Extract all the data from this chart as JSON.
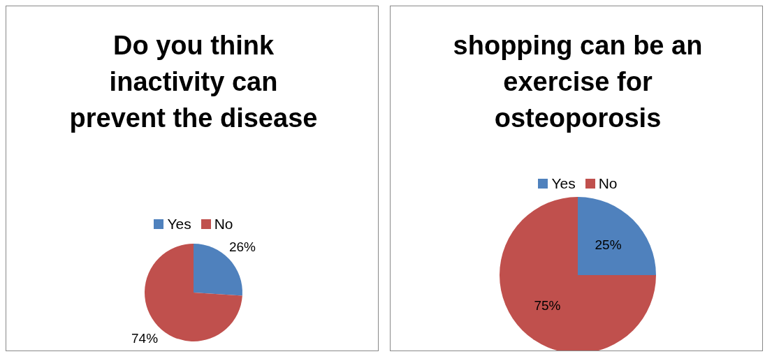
{
  "chart_data": [
    {
      "type": "pie",
      "title": "Do you think inactivity can prevent the disease",
      "categories": [
        "Yes",
        "No"
      ],
      "values": [
        26,
        74
      ],
      "colors": [
        "#4f81bd",
        "#c0504d"
      ],
      "value_labels": [
        "26%",
        "74%"
      ],
      "legend": "top"
    },
    {
      "type": "pie",
      "title": "shopping can be an exercise for osteoporosis",
      "categories": [
        "Yes",
        "No"
      ],
      "values": [
        25,
        75
      ],
      "colors": [
        "#4f81bd",
        "#c0504d"
      ],
      "value_labels": [
        "25%",
        "75%"
      ],
      "legend": "top"
    }
  ]
}
